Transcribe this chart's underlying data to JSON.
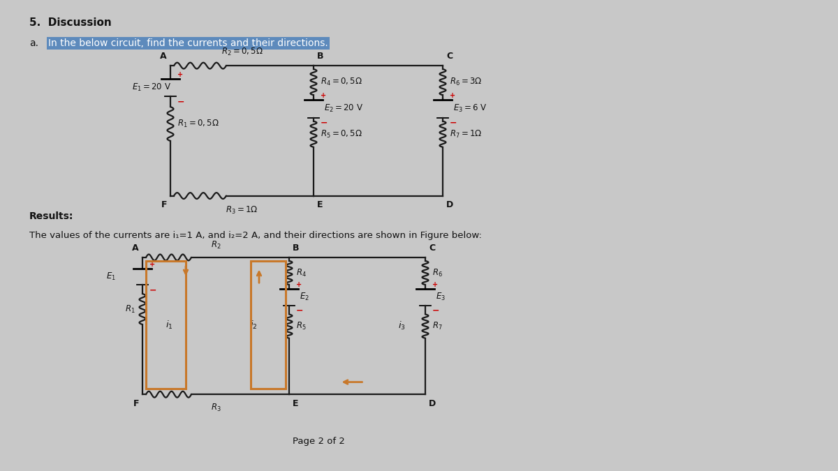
{
  "title": "5.  Discussion",
  "question_label": "a.",
  "question_text": "In the below circuit, find the currents and their directions.",
  "results_label": "Results:",
  "results_text": "The values of the currents are i₁=1 A, and i₂=2 A, and their directions are shown in Figure below:",
  "page_label": "Page 2 of 2",
  "bg_color": "#c8c8c8",
  "paper_color": "#e0e0e0",
  "line_color": "#1a1a1a",
  "text_color": "#111111",
  "highlight_bg": "#4a7fba",
  "orange_color": "#c8782a",
  "red_color": "#cc0000"
}
